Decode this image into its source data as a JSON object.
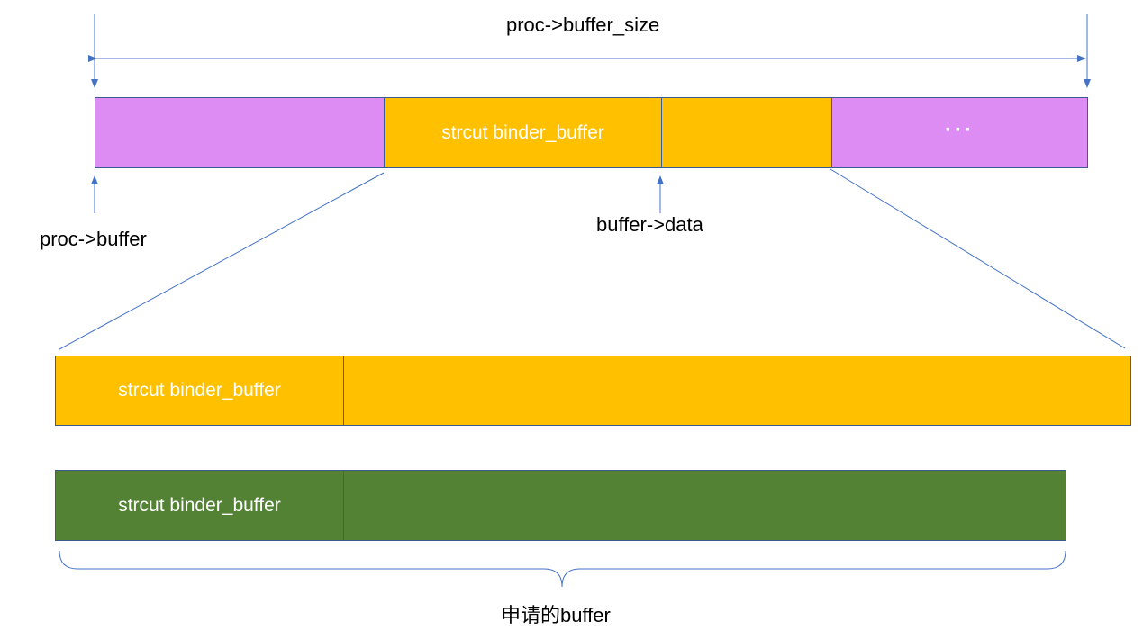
{
  "labels": {
    "buffer_size": "proc->buffer_size",
    "proc_buffer": "proc->buffer",
    "buffer_data": "buffer->data",
    "requested_buffer": "申请的buffer"
  },
  "top_row": {
    "header_text": "strcut binder_buffer",
    "ellipsis": "···"
  },
  "zoom_row": {
    "header_text": "strcut binder_buffer"
  },
  "alloc_row": {
    "header_text": "strcut binder_buffer"
  },
  "colors": {
    "free": "#dc8cf2",
    "allocated": "#ffc000",
    "requested": "#548235",
    "line": "#4472c4"
  }
}
